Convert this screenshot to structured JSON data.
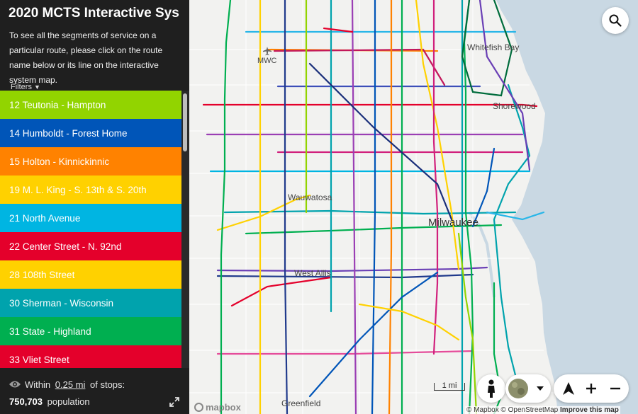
{
  "sidebar": {
    "title": "2020 MCTS Interactive Sys",
    "description": "To see all the segments of service on a particular route, please click on the route name below or its line on the interactive system map.",
    "filters_label": "Filters",
    "routes": [
      {
        "label": "12 Teutonia - Hampton",
        "color": "#92d400"
      },
      {
        "label": "14 Humboldt - Forest Home",
        "color": "#0055b8"
      },
      {
        "label": "15 Holton - Kinnickinnic",
        "color": "#ff8200"
      },
      {
        "label": "19 M. L. King - S. 13th & S. 20th",
        "color": "#ffd100"
      },
      {
        "label": "21 North Avenue",
        "color": "#00b5e2"
      },
      {
        "label": "22 Center Street - N. 92nd",
        "color": "#e4002b"
      },
      {
        "label": "28 108th Street",
        "color": "#ffd100"
      },
      {
        "label": "30 Sherman - Wisconsin",
        "color": "#00a3ad"
      },
      {
        "label": "31 State - Highland",
        "color": "#00af50"
      },
      {
        "label": "33 Vliet Street",
        "color": "#e4002b"
      }
    ],
    "stats": {
      "within_prefix": "Within",
      "distance": "0.25 mi",
      "within_suffix": "of stops:",
      "population_value": "750,703",
      "population_label": "population"
    }
  },
  "map": {
    "places": {
      "whitefish_bay": "Whitefish Bay",
      "shorewood": "Shorewood",
      "mwc": "MWC",
      "wauwatosa": "Wauwatosa",
      "milwaukee": "Milwaukee",
      "west_allis": "West Allis",
      "greenfield": "Greenfield"
    },
    "scale_label": "1 mi",
    "logo": "mapbox",
    "attribution": "© Mapbox © OpenStreetMap",
    "improve_link": "Improve this map",
    "colors": {
      "land": "#f2f2f0",
      "water": "#c9d8e3",
      "road": "#ffffff"
    }
  }
}
